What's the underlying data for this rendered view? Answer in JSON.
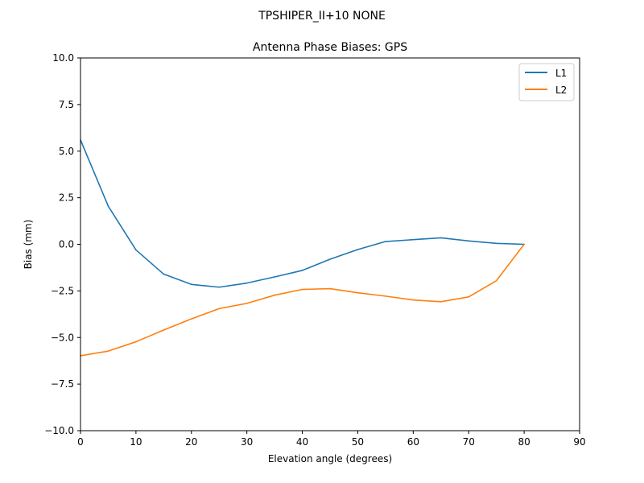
{
  "suptitle": "TPSHIPER_II+10  NONE",
  "chart_data": {
    "type": "line",
    "title": "Antenna Phase Biases: GPS",
    "xlabel": "Elevation angle (degrees)",
    "ylabel": "Bias (mm)",
    "xlim": [
      0,
      90
    ],
    "ylim": [
      -10,
      10
    ],
    "xticks": [
      0,
      10,
      20,
      30,
      40,
      50,
      60,
      70,
      80,
      90
    ],
    "yticks": [
      -10.0,
      -7.5,
      -5.0,
      -2.5,
      0.0,
      2.5,
      5.0,
      7.5,
      10.0
    ],
    "xtick_labels": [
      "0",
      "10",
      "20",
      "30",
      "40",
      "50",
      "60",
      "70",
      "80",
      "90"
    ],
    "ytick_labels": [
      "−10.0",
      "−7.5",
      "−5.0",
      "−2.5",
      "0.0",
      "2.5",
      "5.0",
      "7.5",
      "10.0"
    ],
    "grid": false,
    "legend_position": "top-right",
    "x": [
      0,
      5,
      10,
      15,
      20,
      25,
      30,
      35,
      40,
      45,
      50,
      55,
      60,
      65,
      70,
      75,
      80
    ],
    "series": [
      {
        "name": "L1",
        "color": "#1f77b4",
        "values": [
          5.6,
          2.05,
          -0.3,
          -1.6,
          -2.15,
          -2.3,
          -2.08,
          -1.75,
          -1.4,
          -0.8,
          -0.28,
          0.15,
          0.25,
          0.35,
          0.18,
          0.05,
          0.0
        ]
      },
      {
        "name": "L2",
        "color": "#ff7f0e",
        "values": [
          -5.98,
          -5.73,
          -5.23,
          -4.6,
          -4.0,
          -3.45,
          -3.17,
          -2.73,
          -2.42,
          -2.38,
          -2.6,
          -2.78,
          -2.99,
          -3.08,
          -2.82,
          -1.95,
          0.0
        ]
      }
    ]
  }
}
